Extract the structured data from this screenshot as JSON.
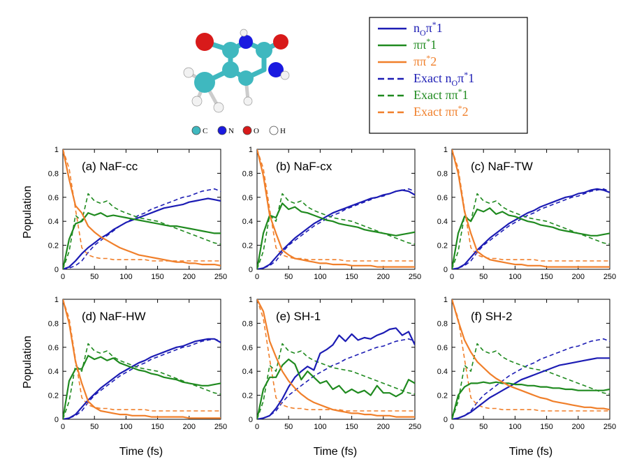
{
  "legend": [
    {
      "series": "n_O_pi1",
      "base": "n",
      "sub": "O",
      "main": "π",
      "sup": "*",
      "tail": "1",
      "prefix": "",
      "color": "#1c1cb4",
      "dash": false
    },
    {
      "series": "pipi1",
      "base": "",
      "sub": "",
      "main": "ππ",
      "sup": "*",
      "tail": "1",
      "prefix": "",
      "color": "#1f8a1f",
      "dash": false
    },
    {
      "series": "pipi2",
      "base": "",
      "sub": "",
      "main": "ππ",
      "sup": "*",
      "tail": "2",
      "prefix": "",
      "color": "#f07f2a",
      "dash": false
    },
    {
      "series": "exact_n_O_pi1",
      "base": "n",
      "sub": "O",
      "main": "π",
      "sup": "*",
      "tail": "1",
      "prefix": "Exact ",
      "color": "#1c1cb4",
      "dash": true
    },
    {
      "series": "exact_pipi1",
      "base": "",
      "sub": "",
      "main": "ππ",
      "sup": "*",
      "tail": "1",
      "prefix": "Exact ",
      "color": "#1f8a1f",
      "dash": true
    },
    {
      "series": "exact_pipi2",
      "base": "",
      "sub": "",
      "main": "ππ",
      "sup": "*",
      "tail": "2",
      "prefix": "Exact ",
      "color": "#f07f2a",
      "dash": true
    }
  ],
  "molecule_legend": [
    {
      "label": "C",
      "color": "#3fb8bf"
    },
    {
      "label": "N",
      "color": "#1a1ae0"
    },
    {
      "label": "O",
      "color": "#d81a1a"
    },
    {
      "label": "H",
      "color": "#ffffff"
    }
  ],
  "colors": {
    "blue": "#1c1cb4",
    "green": "#1f8a1f",
    "orange": "#f07f2a"
  },
  "axes": {
    "xlabel": "Time (fs)",
    "ylabel": "Population",
    "xlim": [
      0,
      250
    ],
    "ylim": [
      0,
      1
    ],
    "xticks": [
      "0",
      "50",
      "100",
      "150",
      "200",
      "250"
    ],
    "yticks": [
      "0",
      "0.2",
      "0.4",
      "0.6",
      "0.8",
      "1"
    ]
  },
  "exact": {
    "x": [
      0,
      10,
      20,
      30,
      40,
      50,
      60,
      70,
      80,
      90,
      100,
      110,
      120,
      130,
      140,
      150,
      160,
      170,
      180,
      190,
      200,
      210,
      220,
      230,
      240,
      250
    ],
    "n_O_pi1": [
      0,
      0.01,
      0.03,
      0.07,
      0.14,
      0.2,
      0.24,
      0.28,
      0.32,
      0.36,
      0.39,
      0.42,
      0.45,
      0.47,
      0.5,
      0.52,
      0.54,
      0.56,
      0.58,
      0.6,
      0.61,
      0.63,
      0.65,
      0.66,
      0.67,
      0.65
    ],
    "pipi1": [
      0,
      0.15,
      0.45,
      0.4,
      0.63,
      0.57,
      0.55,
      0.57,
      0.52,
      0.49,
      0.47,
      0.45,
      0.43,
      0.42,
      0.41,
      0.4,
      0.38,
      0.36,
      0.34,
      0.32,
      0.3,
      0.28,
      0.26,
      0.24,
      0.22,
      0.21
    ],
    "pipi2": [
      1,
      0.84,
      0.5,
      0.18,
      0.12,
      0.1,
      0.09,
      0.09,
      0.08,
      0.08,
      0.08,
      0.08,
      0.08,
      0.08,
      0.07,
      0.07,
      0.07,
      0.07,
      0.07,
      0.07,
      0.07,
      0.07,
      0.07,
      0.07,
      0.07,
      0.07
    ]
  },
  "chart_data": [
    {
      "type": "line",
      "panel_label": "(a) NaF-cc",
      "x": [
        0,
        10,
        20,
        30,
        40,
        50,
        60,
        70,
        80,
        90,
        100,
        110,
        120,
        130,
        140,
        150,
        160,
        170,
        180,
        190,
        200,
        210,
        220,
        230,
        240,
        250
      ],
      "series": [
        {
          "name": "n_Oπ*1",
          "values": [
            0,
            0.02,
            0.07,
            0.13,
            0.18,
            0.22,
            0.26,
            0.29,
            0.33,
            0.36,
            0.39,
            0.41,
            0.43,
            0.45,
            0.47,
            0.49,
            0.51,
            0.52,
            0.53,
            0.54,
            0.56,
            0.57,
            0.58,
            0.59,
            0.58,
            0.57
          ]
        },
        {
          "name": "ππ*1",
          "values": [
            0,
            0.25,
            0.38,
            0.4,
            0.47,
            0.45,
            0.47,
            0.44,
            0.45,
            0.44,
            0.43,
            0.42,
            0.41,
            0.4,
            0.39,
            0.38,
            0.37,
            0.36,
            0.36,
            0.35,
            0.34,
            0.33,
            0.32,
            0.31,
            0.3,
            0.3
          ]
        },
        {
          "name": "ππ*2",
          "values": [
            1,
            0.75,
            0.53,
            0.47,
            0.36,
            0.31,
            0.27,
            0.24,
            0.21,
            0.18,
            0.16,
            0.14,
            0.12,
            0.11,
            0.1,
            0.09,
            0.08,
            0.07,
            0.06,
            0.06,
            0.05,
            0.05,
            0.04,
            0.04,
            0.04,
            0.03
          ]
        }
      ]
    },
    {
      "type": "line",
      "panel_label": "(b) NaF-cx",
      "x": [
        0,
        10,
        20,
        30,
        40,
        50,
        60,
        70,
        80,
        90,
        100,
        110,
        120,
        130,
        140,
        150,
        160,
        170,
        180,
        190,
        200,
        210,
        220,
        230,
        240,
        250
      ],
      "series": [
        {
          "name": "n_Oπ*1",
          "values": [
            0,
            0.01,
            0.04,
            0.1,
            0.16,
            0.21,
            0.26,
            0.3,
            0.34,
            0.38,
            0.41,
            0.44,
            0.47,
            0.49,
            0.51,
            0.53,
            0.55,
            0.57,
            0.59,
            0.6,
            0.62,
            0.63,
            0.65,
            0.66,
            0.65,
            0.62
          ]
        },
        {
          "name": "ππ*1",
          "values": [
            0,
            0.3,
            0.45,
            0.43,
            0.55,
            0.5,
            0.52,
            0.48,
            0.47,
            0.45,
            0.43,
            0.41,
            0.4,
            0.38,
            0.37,
            0.36,
            0.35,
            0.33,
            0.32,
            0.31,
            0.3,
            0.29,
            0.28,
            0.29,
            0.3,
            0.31
          ]
        },
        {
          "name": "ππ*2",
          "values": [
            1,
            0.78,
            0.45,
            0.3,
            0.16,
            0.12,
            0.09,
            0.08,
            0.07,
            0.06,
            0.05,
            0.05,
            0.04,
            0.04,
            0.04,
            0.03,
            0.03,
            0.03,
            0.03,
            0.02,
            0.02,
            0.02,
            0.02,
            0.02,
            0.02,
            0.02
          ]
        }
      ]
    },
    {
      "type": "line",
      "panel_label": "(c) NaF-TW",
      "x": [
        0,
        10,
        20,
        30,
        40,
        50,
        60,
        70,
        80,
        90,
        100,
        110,
        120,
        130,
        140,
        150,
        160,
        170,
        180,
        190,
        200,
        210,
        220,
        230,
        240,
        250
      ],
      "series": [
        {
          "name": "n_Oπ*1",
          "values": [
            0,
            0.01,
            0.04,
            0.1,
            0.16,
            0.21,
            0.26,
            0.3,
            0.34,
            0.38,
            0.41,
            0.44,
            0.47,
            0.49,
            0.52,
            0.54,
            0.56,
            0.58,
            0.6,
            0.61,
            0.63,
            0.64,
            0.66,
            0.67,
            0.66,
            0.64
          ]
        },
        {
          "name": "ππ*1",
          "values": [
            0,
            0.3,
            0.44,
            0.4,
            0.5,
            0.48,
            0.51,
            0.46,
            0.48,
            0.45,
            0.44,
            0.42,
            0.4,
            0.39,
            0.37,
            0.36,
            0.35,
            0.33,
            0.32,
            0.31,
            0.3,
            0.29,
            0.28,
            0.28,
            0.29,
            0.3
          ]
        },
        {
          "name": "ππ*2",
          "values": [
            1,
            0.8,
            0.48,
            0.3,
            0.15,
            0.11,
            0.08,
            0.07,
            0.06,
            0.05,
            0.04,
            0.04,
            0.03,
            0.03,
            0.03,
            0.02,
            0.02,
            0.02,
            0.02,
            0.02,
            0.02,
            0.02,
            0.02,
            0.02,
            0.02,
            0.02
          ]
        }
      ]
    },
    {
      "type": "line",
      "panel_label": "(d) NaF-HW",
      "x": [
        0,
        10,
        20,
        30,
        40,
        50,
        60,
        70,
        80,
        90,
        100,
        110,
        120,
        130,
        140,
        150,
        160,
        170,
        180,
        190,
        200,
        210,
        220,
        230,
        240,
        250
      ],
      "series": [
        {
          "name": "n_Oπ*1",
          "values": [
            0,
            0.01,
            0.04,
            0.1,
            0.16,
            0.21,
            0.26,
            0.3,
            0.34,
            0.38,
            0.41,
            0.44,
            0.47,
            0.49,
            0.52,
            0.54,
            0.56,
            0.58,
            0.6,
            0.61,
            0.63,
            0.65,
            0.66,
            0.67,
            0.67,
            0.64
          ]
        },
        {
          "name": "ππ*1",
          "values": [
            0,
            0.32,
            0.42,
            0.42,
            0.53,
            0.5,
            0.52,
            0.49,
            0.51,
            0.47,
            0.45,
            0.43,
            0.41,
            0.4,
            0.38,
            0.37,
            0.35,
            0.34,
            0.33,
            0.31,
            0.3,
            0.29,
            0.28,
            0.28,
            0.29,
            0.3
          ]
        },
        {
          "name": "ππ*2",
          "values": [
            1,
            0.8,
            0.48,
            0.3,
            0.15,
            0.1,
            0.07,
            0.06,
            0.05,
            0.04,
            0.04,
            0.03,
            0.03,
            0.03,
            0.02,
            0.02,
            0.02,
            0.02,
            0.02,
            0.02,
            0.01,
            0.01,
            0.01,
            0.01,
            0.01,
            0.01
          ]
        }
      ]
    },
    {
      "type": "line",
      "panel_label": "(e) SH-1",
      "x": [
        0,
        10,
        20,
        30,
        40,
        50,
        60,
        70,
        80,
        90,
        100,
        110,
        120,
        130,
        140,
        150,
        160,
        170,
        180,
        190,
        200,
        210,
        220,
        230,
        240,
        250
      ],
      "series": [
        {
          "name": "n_Oπ*1",
          "values": [
            0,
            0.01,
            0.03,
            0.09,
            0.17,
            0.27,
            0.35,
            0.4,
            0.44,
            0.41,
            0.55,
            0.58,
            0.62,
            0.7,
            0.65,
            0.71,
            0.66,
            0.68,
            0.67,
            0.7,
            0.72,
            0.75,
            0.76,
            0.7,
            0.73,
            0.62
          ]
        },
        {
          "name": "ππ*1",
          "values": [
            0,
            0.25,
            0.35,
            0.35,
            0.45,
            0.5,
            0.46,
            0.33,
            0.4,
            0.35,
            0.3,
            0.32,
            0.25,
            0.28,
            0.22,
            0.25,
            0.22,
            0.24,
            0.2,
            0.28,
            0.22,
            0.22,
            0.19,
            0.22,
            0.33,
            0.3
          ]
        },
        {
          "name": "ππ*2",
          "values": [
            1,
            0.9,
            0.65,
            0.52,
            0.4,
            0.32,
            0.26,
            0.21,
            0.17,
            0.14,
            0.12,
            0.1,
            0.08,
            0.07,
            0.06,
            0.05,
            0.05,
            0.04,
            0.04,
            0.03,
            0.03,
            0.03,
            0.02,
            0.02,
            0.02,
            0.02
          ]
        }
      ]
    },
    {
      "type": "line",
      "panel_label": "(f) SH-2",
      "x": [
        0,
        10,
        20,
        30,
        40,
        50,
        60,
        70,
        80,
        90,
        100,
        110,
        120,
        130,
        140,
        150,
        160,
        170,
        180,
        190,
        200,
        210,
        220,
        230,
        240,
        250
      ],
      "series": [
        {
          "name": "n_Oπ*1",
          "values": [
            0,
            0.01,
            0.03,
            0.06,
            0.1,
            0.14,
            0.18,
            0.21,
            0.24,
            0.27,
            0.3,
            0.33,
            0.35,
            0.37,
            0.39,
            0.41,
            0.43,
            0.45,
            0.46,
            0.47,
            0.48,
            0.49,
            0.5,
            0.51,
            0.51,
            0.51
          ]
        },
        {
          "name": "ππ*1",
          "values": [
            0,
            0.2,
            0.27,
            0.3,
            0.3,
            0.31,
            0.3,
            0.31,
            0.3,
            0.3,
            0.29,
            0.29,
            0.28,
            0.28,
            0.27,
            0.27,
            0.26,
            0.26,
            0.25,
            0.25,
            0.24,
            0.24,
            0.24,
            0.24,
            0.24,
            0.25
          ]
        },
        {
          "name": "ππ*2",
          "values": [
            1,
            0.82,
            0.66,
            0.56,
            0.48,
            0.43,
            0.38,
            0.34,
            0.31,
            0.28,
            0.26,
            0.24,
            0.22,
            0.2,
            0.18,
            0.17,
            0.15,
            0.14,
            0.13,
            0.12,
            0.11,
            0.1,
            0.1,
            0.09,
            0.09,
            0.08
          ]
        }
      ]
    }
  ]
}
